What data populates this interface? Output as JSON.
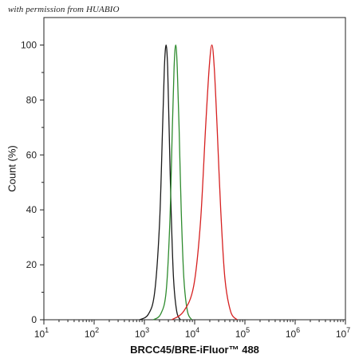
{
  "watermark": "with permission from HUABIO",
  "chart_data": {
    "type": "line",
    "xlabel": "BRCC45/BRE-iFluor™ 488",
    "ylabel": "Count  (%)",
    "x_scale": "log",
    "xlim": [
      10,
      10000000
    ],
    "ylim": [
      0,
      110
    ],
    "x_ticks": [
      10,
      100,
      1000,
      10000,
      100000,
      1000000,
      10000000
    ],
    "x_tick_labels": [
      {
        "base": "10",
        "exp": "1"
      },
      {
        "base": "10",
        "exp": "2"
      },
      {
        "base": "10",
        "exp": "3"
      },
      {
        "base": "10",
        "exp": "4"
      },
      {
        "base": "10",
        "exp": "5"
      },
      {
        "base": "10",
        "exp": "6"
      },
      {
        "base": "10",
        "exp": "7"
      }
    ],
    "y_ticks": [
      0,
      20,
      40,
      60,
      80,
      100
    ],
    "grid": false,
    "legend": "none",
    "series": [
      {
        "color": "#1a1a1a",
        "peak_x": 2700,
        "peak_y": 100,
        "x": [
          800,
          1200,
          1600,
          2000,
          2300,
          2500,
          2700,
          2900,
          3100,
          3400,
          3800,
          4400,
          5200
        ],
        "y": [
          0,
          2,
          10,
          35,
          70,
          92,
          100,
          92,
          70,
          40,
          15,
          3,
          0
        ]
      },
      {
        "color": "#2e8b2e",
        "peak_x": 4200,
        "peak_y": 100,
        "x": [
          1500,
          2100,
          2700,
          3200,
          3600,
          3900,
          4200,
          4500,
          4900,
          5400,
          6100,
          7200,
          8800
        ],
        "y": [
          0,
          2,
          10,
          35,
          70,
          92,
          100,
          92,
          70,
          40,
          15,
          3,
          0
        ]
      },
      {
        "color": "#d62020",
        "peak_x": 22000,
        "peak_y": 100,
        "x": [
          3500,
          6000,
          9500,
          13000,
          16500,
          19500,
          22000,
          24500,
          28000,
          33000,
          40000,
          52000,
          70000
        ],
        "y": [
          0,
          3,
          12,
          35,
          70,
          92,
          100,
          92,
          70,
          40,
          15,
          3,
          0
        ]
      }
    ]
  }
}
